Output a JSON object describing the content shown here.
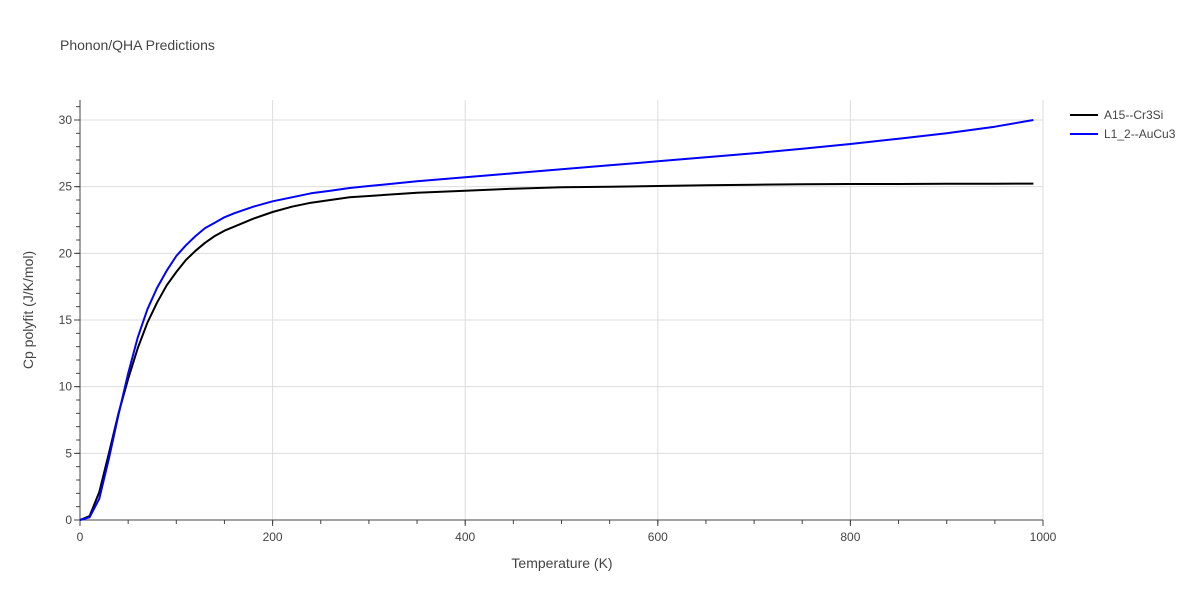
{
  "chart_data": {
    "type": "line",
    "title": "Phonon/QHA Predictions",
    "xlabel": "Temperature (K)",
    "ylabel": "Cp polyfit (J/K/mol)",
    "xlim": [
      0,
      1000
    ],
    "ylim": [
      0,
      31.5
    ],
    "x_ticks": [
      0,
      200,
      400,
      600,
      800,
      1000
    ],
    "y_ticks": [
      0,
      5,
      10,
      15,
      20,
      25,
      30
    ],
    "grid": true,
    "legend_position": "top-right",
    "series": [
      {
        "name": "A15--Cr3Si",
        "color": "#000000",
        "x": [
          0,
          10,
          20,
          30,
          40,
          50,
          60,
          70,
          80,
          90,
          100,
          110,
          120,
          130,
          140,
          150,
          160,
          180,
          200,
          220,
          240,
          260,
          280,
          300,
          350,
          400,
          450,
          500,
          550,
          600,
          650,
          700,
          750,
          800,
          850,
          900,
          950,
          990
        ],
        "y": [
          0,
          0.3,
          2.1,
          5.0,
          8.0,
          10.6,
          12.9,
          14.8,
          16.3,
          17.6,
          18.6,
          19.5,
          20.2,
          20.8,
          21.3,
          21.7,
          22.0,
          22.6,
          23.1,
          23.5,
          23.8,
          24.0,
          24.2,
          24.3,
          24.55,
          24.7,
          24.85,
          24.95,
          25.0,
          25.05,
          25.1,
          25.15,
          25.18,
          25.2,
          25.2,
          25.22,
          25.22,
          25.23
        ]
      },
      {
        "name": "L1_2--AuCu3",
        "color": "#0000ff",
        "x": [
          0,
          10,
          20,
          30,
          40,
          50,
          60,
          70,
          80,
          90,
          100,
          110,
          120,
          130,
          140,
          150,
          160,
          180,
          200,
          220,
          240,
          260,
          280,
          300,
          350,
          400,
          450,
          500,
          550,
          600,
          650,
          700,
          750,
          800,
          850,
          900,
          950,
          990
        ],
        "y": [
          0,
          0.2,
          1.6,
          4.6,
          7.9,
          11.0,
          13.7,
          15.8,
          17.4,
          18.7,
          19.8,
          20.6,
          21.3,
          21.9,
          22.3,
          22.7,
          23.0,
          23.5,
          23.9,
          24.2,
          24.5,
          24.7,
          24.9,
          25.05,
          25.4,
          25.7,
          26.0,
          26.3,
          26.6,
          26.9,
          27.2,
          27.5,
          27.85,
          28.2,
          28.6,
          29.0,
          29.5,
          30.0
        ]
      }
    ]
  }
}
